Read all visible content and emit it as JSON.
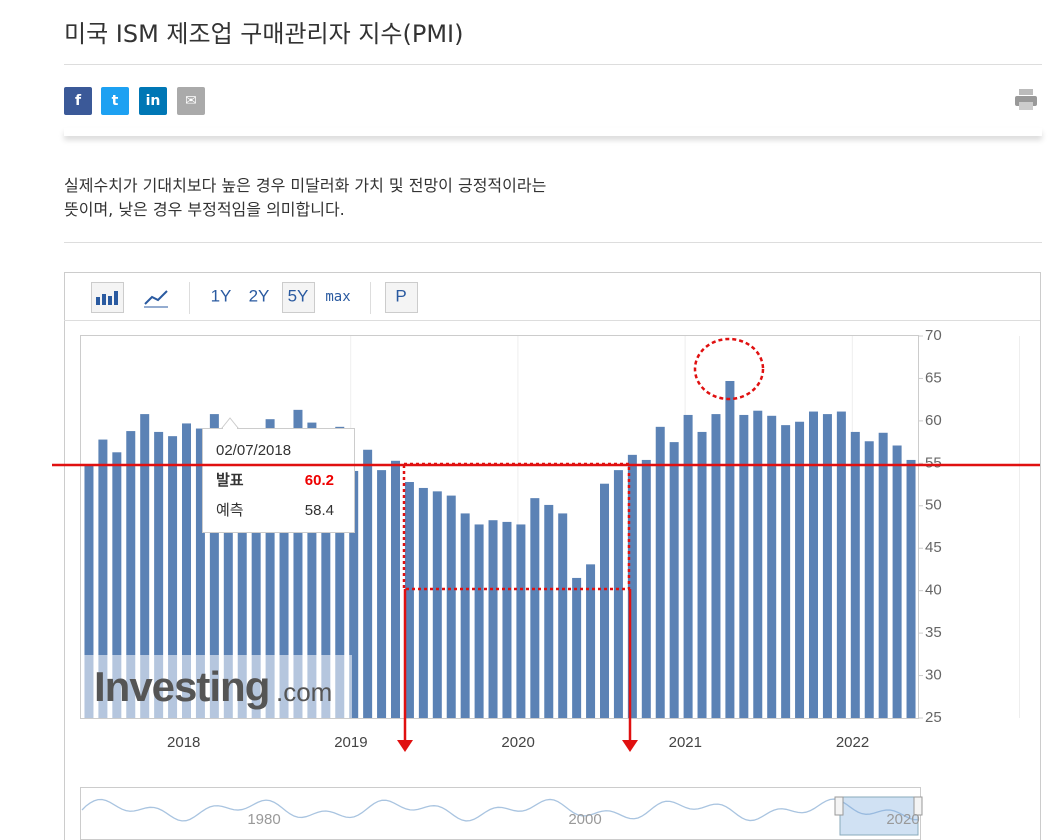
{
  "header": {
    "title": "미국 ISM 제조업 구매관리자 지수(PMI)"
  },
  "description": [
    "실제수치가 기대치보다 높은 경우 미달러화 가치 및 전망이 긍정적이라는",
    "뜻이며, 낮은 경우 부정적임을 의미합니다."
  ],
  "toolbar": {
    "ranges": [
      "1Y",
      "2Y",
      "5Y",
      "max"
    ],
    "p": "P"
  },
  "chart_data": {
    "type": "bar",
    "color": "#5b82b5",
    "values": [
      54.9,
      57.8,
      56.3,
      58.8,
      60.8,
      58.7,
      58.2,
      59.7,
      59.1,
      60.8,
      59.3,
      57.3,
      58.7,
      60.2,
      58.1,
      61.3,
      59.8,
      57.7,
      59.3,
      54.1,
      56.6,
      54.2,
      55.3,
      52.8,
      52.1,
      51.7,
      51.2,
      49.1,
      47.8,
      48.3,
      48.1,
      47.8,
      50.9,
      50.1,
      49.1,
      41.5,
      43.1,
      52.6,
      54.2,
      56.0,
      55.4,
      59.3,
      57.5,
      60.7,
      58.7,
      60.8,
      64.7,
      60.7,
      61.2,
      60.6,
      59.5,
      59.9,
      61.1,
      60.8,
      61.1,
      58.7,
      57.6,
      58.6,
      57.1,
      55.4
    ],
    "ylim": [
      25,
      70
    ],
    "yticks": [
      25,
      30,
      35,
      40,
      45,
      50,
      55,
      60,
      65,
      70
    ],
    "xticks": [
      2018,
      2019,
      2020,
      2021,
      2022
    ],
    "tooltip": {
      "date": "02/07/2018",
      "actual_label": "발표",
      "actual": 60.2,
      "forecast_label": "예측",
      "forecast": 58.4
    },
    "watermark": [
      "Investing",
      ".com"
    ],
    "navigator_ticks": [
      1980,
      2000,
      2020
    ]
  }
}
